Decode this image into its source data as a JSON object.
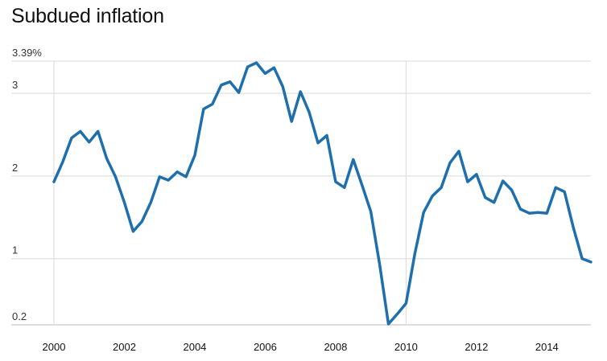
{
  "chart_data": {
    "type": "line",
    "title": "Subdued inflation",
    "xlabel": "",
    "ylabel": "",
    "xlim": [
      2000,
      2015.25
    ],
    "ylim": [
      0.2,
      3.39
    ],
    "y_ticks": [
      {
        "value": 3.39,
        "label": "3.39%"
      },
      {
        "value": 3,
        "label": "3"
      },
      {
        "value": 2,
        "label": "2"
      },
      {
        "value": 1,
        "label": "1"
      },
      {
        "value": 0.2,
        "label": "0.2"
      }
    ],
    "x_ticks": [
      {
        "value": 2000,
        "label": "2000"
      },
      {
        "value": 2002,
        "label": "2002"
      },
      {
        "value": 2004,
        "label": "2004"
      },
      {
        "value": 2006,
        "label": "2006"
      },
      {
        "value": 2008,
        "label": "2008"
      },
      {
        "value": 2010,
        "label": "2010"
      },
      {
        "value": 2012,
        "label": "2012"
      },
      {
        "value": 2014,
        "label": "2014"
      }
    ],
    "vertical_gridlines_at": [
      2000,
      2010
    ],
    "grid": true,
    "legend": "none",
    "series": [
      {
        "color": "#1f6fad",
        "x": [
          2000.0,
          2000.25,
          2000.5,
          2000.75,
          2001.0,
          2001.25,
          2001.5,
          2001.75,
          2002.0,
          2002.25,
          2002.5,
          2002.75,
          2003.0,
          2003.25,
          2003.5,
          2003.75,
          2004.0,
          2004.25,
          2004.5,
          2004.75,
          2005.0,
          2005.25,
          2005.5,
          2005.75,
          2006.0,
          2006.25,
          2006.5,
          2006.75,
          2007.0,
          2007.25,
          2007.5,
          2007.75,
          2008.0,
          2008.25,
          2008.5,
          2008.75,
          2009.0,
          2009.25,
          2009.5,
          2009.75,
          2010.0,
          2010.25,
          2010.5,
          2010.75,
          2011.0,
          2011.25,
          2011.5,
          2011.75,
          2012.0,
          2012.25,
          2012.5,
          2012.75,
          2013.0,
          2013.25,
          2013.5,
          2013.75,
          2014.0,
          2014.25,
          2014.5,
          2014.75,
          2015.0,
          2015.25
        ],
        "values": [
          1.93,
          2.17,
          2.46,
          2.54,
          2.41,
          2.54,
          2.21,
          1.99,
          1.68,
          1.33,
          1.45,
          1.68,
          1.99,
          1.95,
          2.05,
          1.99,
          2.25,
          2.81,
          2.87,
          3.1,
          3.14,
          3.01,
          3.32,
          3.37,
          3.24,
          3.31,
          3.08,
          2.66,
          3.02,
          2.77,
          2.4,
          2.49,
          1.93,
          1.86,
          2.2,
          1.89,
          1.57,
          0.93,
          0.21,
          0.33,
          0.46,
          1.06,
          1.56,
          1.76,
          1.86,
          2.16,
          2.3,
          1.93,
          2.02,
          1.74,
          1.68,
          1.94,
          1.83,
          1.6,
          1.55,
          1.56,
          1.55,
          1.86,
          1.81,
          1.38,
          1.0,
          0.96
        ]
      }
    ]
  }
}
